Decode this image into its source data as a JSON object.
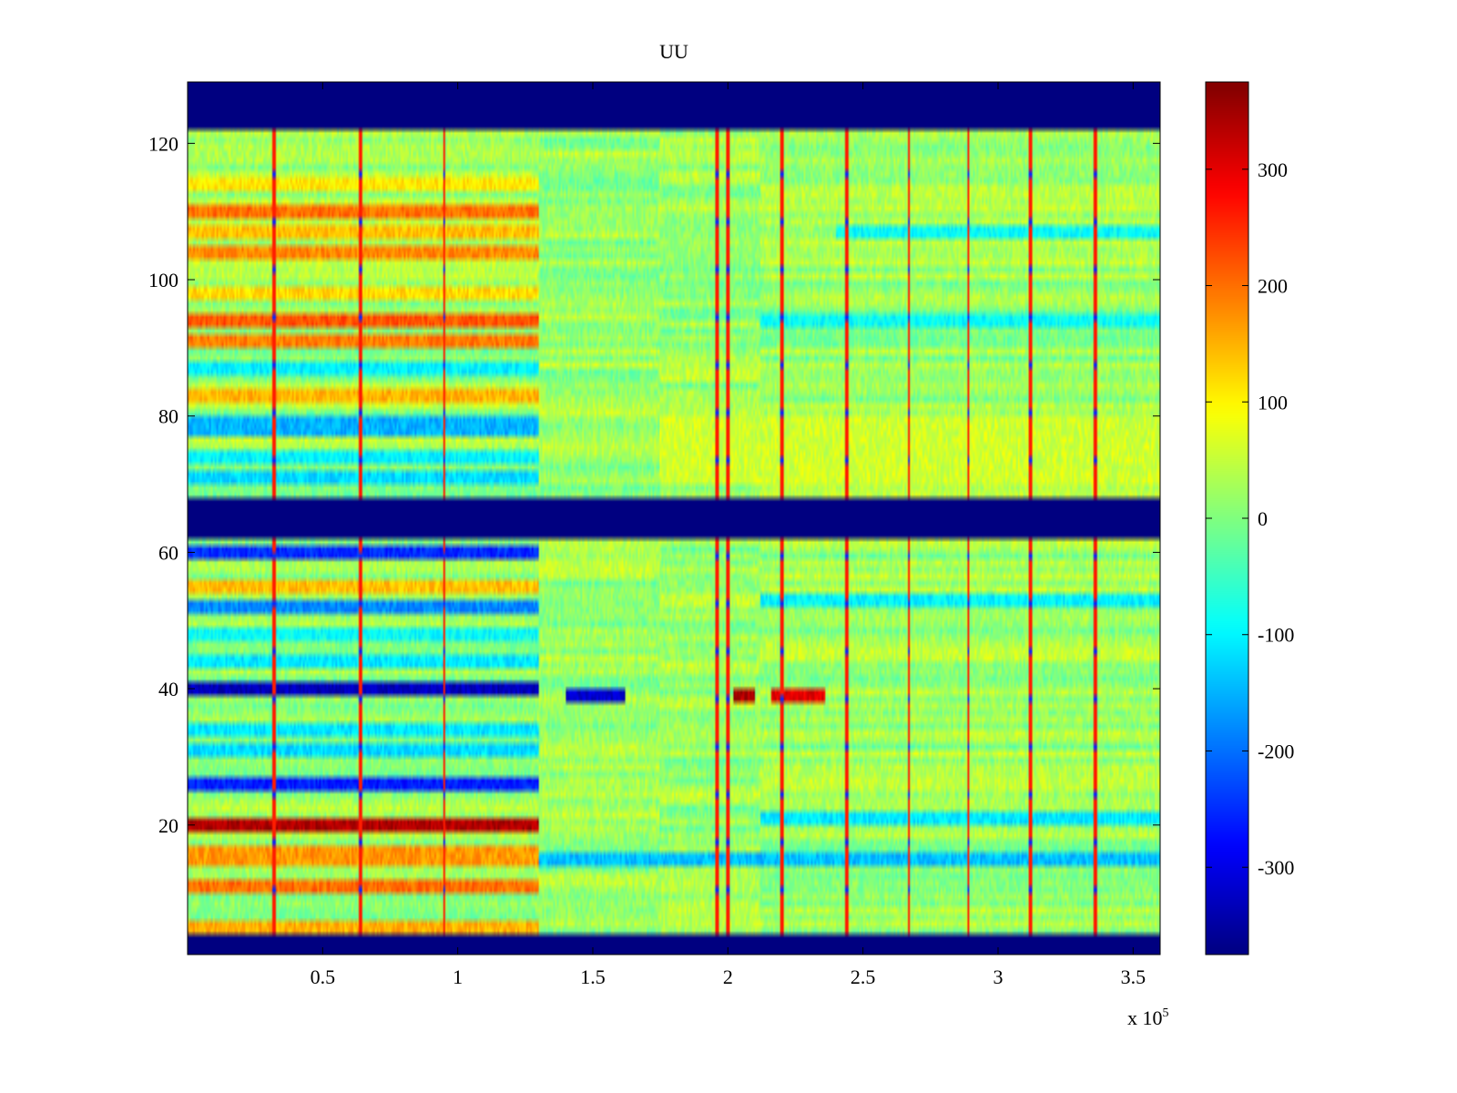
{
  "chart_data": {
    "type": "heatmap",
    "title": "UU",
    "xlabel": "",
    "ylabel": "",
    "x_scale_label": "x 10",
    "x_scale_exponent": "5",
    "x_scale_factor": 100000,
    "xlim": [
      0.0,
      3.6
    ],
    "ylim": [
      1,
      129
    ],
    "x_ticks": [
      0.5,
      1,
      1.5,
      2,
      2.5,
      3,
      3.5
    ],
    "x_tick_labels": [
      "0.5",
      "1",
      "1.5",
      "2",
      "2.5",
      "3",
      "3.5"
    ],
    "y_ticks": [
      20,
      40,
      60,
      80,
      100,
      120
    ],
    "y_tick_labels": [
      "20",
      "40",
      "60",
      "80",
      "100",
      "120"
    ],
    "colorbar": {
      "clim": [
        -375,
        375
      ],
      "ticks": [
        -300,
        -200,
        -100,
        0,
        100,
        200,
        300
      ],
      "tick_labels": [
        "-300",
        "-200",
        "-100",
        "0",
        "100",
        "200",
        "300"
      ],
      "colormap": "jet"
    },
    "empty_row_bands": [
      [
        1,
        4
      ],
      [
        62,
        68
      ],
      [
        122,
        129
      ]
    ],
    "segment_boundaries_x": [
      1.3,
      1.75,
      2.12
    ],
    "spike_columns_x": [
      0.32,
      0.64,
      0.95,
      1.96,
      2.0,
      2.2,
      2.44,
      2.67,
      2.89,
      3.12,
      3.36
    ],
    "row_profiles": [
      {
        "rows": [
          4,
          6
        ],
        "x_range": [
          0.0,
          1.3
        ],
        "value": 150
      },
      {
        "rows": [
          10,
          12
        ],
        "x_range": [
          0.0,
          1.3
        ],
        "value": 200
      },
      {
        "rows": [
          14,
          17
        ],
        "x_range": [
          0.0,
          1.3
        ],
        "value": 170
      },
      {
        "rows": [
          19,
          21
        ],
        "x_range": [
          0.0,
          1.3
        ],
        "value": 340
      },
      {
        "rows": [
          25,
          27
        ],
        "x_range": [
          0.0,
          1.3
        ],
        "value": -260
      },
      {
        "rows": [
          30,
          32
        ],
        "x_range": [
          0.0,
          1.3
        ],
        "value": -120
      },
      {
        "rows": [
          33,
          35
        ],
        "x_range": [
          0.0,
          1.3
        ],
        "value": -110
      },
      {
        "rows": [
          39,
          41
        ],
        "x_range": [
          0.0,
          1.3
        ],
        "value": -330
      },
      {
        "rows": [
          43,
          45
        ],
        "x_range": [
          0.0,
          1.3
        ],
        "value": -110
      },
      {
        "rows": [
          47,
          49
        ],
        "x_range": [
          0.0,
          1.3
        ],
        "value": -90
      },
      {
        "rows": [
          51,
          53
        ],
        "x_range": [
          0.0,
          1.3
        ],
        "value": -180
      },
      {
        "rows": [
          54,
          56
        ],
        "x_range": [
          0.0,
          1.3
        ],
        "value": 140
      },
      {
        "rows": [
          59,
          61
        ],
        "x_range": [
          0.0,
          1.3
        ],
        "value": -250
      },
      {
        "rows": [
          70,
          72
        ],
        "x_range": [
          0.0,
          1.3
        ],
        "value": -120
      },
      {
        "rows": [
          73,
          75
        ],
        "x_range": [
          0.0,
          1.3
        ],
        "value": -100
      },
      {
        "rows": [
          77,
          80
        ],
        "x_range": [
          0.0,
          1.3
        ],
        "value": -150
      },
      {
        "rows": [
          82,
          84
        ],
        "x_range": [
          0.0,
          1.3
        ],
        "value": 150
      },
      {
        "rows": [
          86,
          88
        ],
        "x_range": [
          0.0,
          1.3
        ],
        "value": -100
      },
      {
        "rows": [
          90,
          92
        ],
        "x_range": [
          0.0,
          1.3
        ],
        "value": 190
      },
      {
        "rows": [
          93,
          95
        ],
        "x_range": [
          0.0,
          1.3
        ],
        "value": 220
      },
      {
        "rows": [
          97,
          99
        ],
        "x_range": [
          0.0,
          1.3
        ],
        "value": 120
      },
      {
        "rows": [
          103,
          105
        ],
        "x_range": [
          0.0,
          1.3
        ],
        "value": 180
      },
      {
        "rows": [
          106,
          108
        ],
        "x_range": [
          0.0,
          1.3
        ],
        "value": 140
      },
      {
        "rows": [
          109,
          111
        ],
        "x_range": [
          0.0,
          1.3
        ],
        "value": 200
      },
      {
        "rows": [
          113,
          115
        ],
        "x_range": [
          0.0,
          1.3
        ],
        "value": 110
      },
      {
        "rows": [
          14,
          16
        ],
        "x_range": [
          1.3,
          3.6
        ],
        "value": -140
      },
      {
        "rows": [
          20,
          22
        ],
        "x_range": [
          2.12,
          3.6
        ],
        "value": -110
      },
      {
        "rows": [
          38,
          40
        ],
        "x_range": [
          1.4,
          1.62
        ],
        "value": -320
      },
      {
        "rows": [
          38,
          40
        ],
        "x_range": [
          2.02,
          2.1
        ],
        "value": 340
      },
      {
        "rows": [
          38,
          40
        ],
        "x_range": [
          2.16,
          2.36
        ],
        "value": 300
      },
      {
        "rows": [
          52,
          54
        ],
        "x_range": [
          2.12,
          3.6
        ],
        "value": -100
      },
      {
        "rows": [
          93,
          95
        ],
        "x_range": [
          2.12,
          3.6
        ],
        "value": -90
      },
      {
        "rows": [
          106,
          108
        ],
        "x_range": [
          2.4,
          3.6
        ],
        "value": -90
      },
      {
        "rows": [
          70,
          80
        ],
        "x_range": [
          1.75,
          3.6
        ],
        "value": 60
      }
    ],
    "background_value": 20
  }
}
